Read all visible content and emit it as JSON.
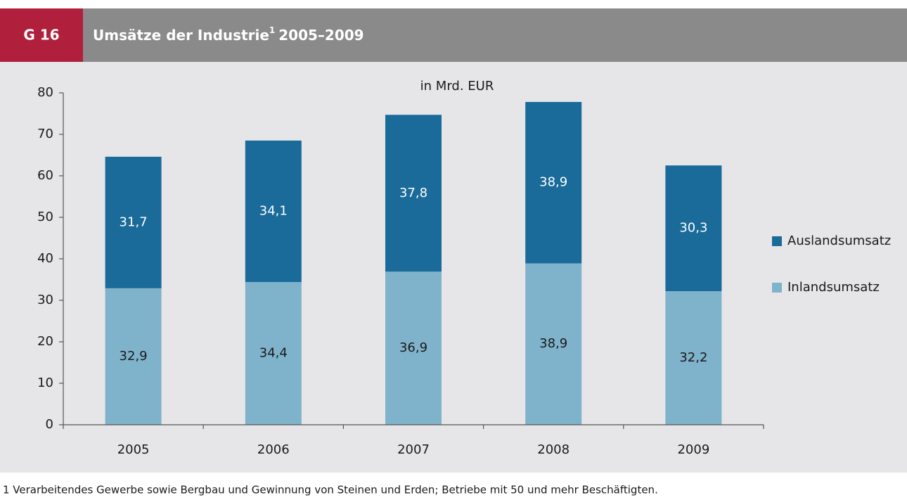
{
  "chart_data": {
    "type": "stacked_bar",
    "label": "G 16",
    "title": "Umsätze der Industrie",
    "title_footnote_mark": "1",
    "title_years": "2005–2009",
    "subtitle": "in Mrd. EUR",
    "categories": [
      "2005",
      "2006",
      "2007",
      "2008",
      "2009"
    ],
    "series": [
      {
        "name": "Inlandsumsatz",
        "color": "#7fb2cb",
        "values": [
          32.9,
          34.4,
          36.9,
          38.9,
          32.2
        ],
        "value_labels": [
          "32,9",
          "34,4",
          "36,9",
          "38,9",
          "32,2"
        ]
      },
      {
        "name": "Auslandsumsatz",
        "color": "#1a6b9a",
        "values": [
          31.7,
          34.1,
          37.8,
          38.9,
          30.3
        ],
        "value_labels": [
          "31,7",
          "34,1",
          "37,8",
          "38,9",
          "30,3"
        ]
      }
    ],
    "ylim": [
      0,
      80
    ],
    "yticks": [
      0,
      10,
      20,
      30,
      40,
      50,
      60,
      70,
      80
    ],
    "footnote": "1 Verarbeitendes Gewerbe sowie Bergbau und Gewinnung von Steinen und Erden; Betriebe mit 50 und mehr Beschäftigten."
  }
}
